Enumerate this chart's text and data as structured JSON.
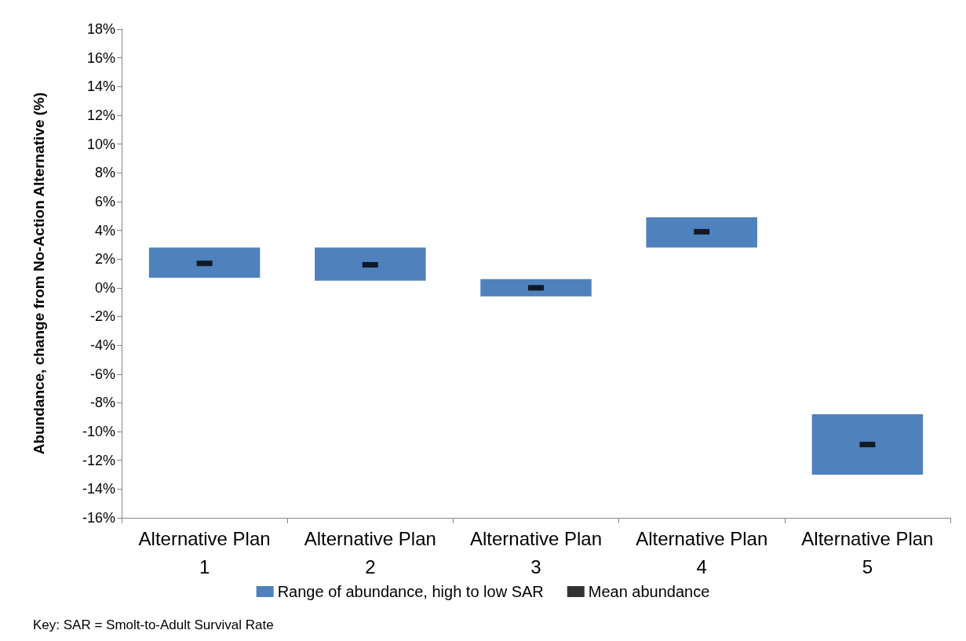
{
  "chart_data": {
    "type": "bar",
    "ylabel": "Abundance, change from No-Action Alternative (%)",
    "categories": [
      "Alternative Plan\n1",
      "Alternative Plan\n2",
      "Alternative Plan\n3",
      "Alternative Plan\n4",
      "Alternative Plan\n5"
    ],
    "series": [
      {
        "name": "Range of abundance, high to low SAR",
        "color": "#4f81bd",
        "base": [
          0.7,
          0.5,
          -0.6,
          2.8,
          -13.0
        ],
        "values": [
          2.1,
          2.3,
          1.2,
          2.1,
          4.2
        ]
      },
      {
        "name": "Mean abundance",
        "type": "scatter",
        "color": "#000000",
        "values": [
          1.7,
          1.6,
          0,
          3.9,
          -10.9
        ]
      }
    ],
    "ylim": [
      -16,
      18
    ],
    "yticks": [
      {
        "value": -16,
        "label": "-16%"
      },
      {
        "value": -14,
        "label": "-14%"
      },
      {
        "value": -12,
        "label": "-12%"
      },
      {
        "value": -10,
        "label": "-10%"
      },
      {
        "value": -8,
        "label": "-8%"
      },
      {
        "value": -6,
        "label": "-6%"
      },
      {
        "value": -4,
        "label": "-4%"
      },
      {
        "value": -2,
        "label": "-2%"
      },
      {
        "value": 0,
        "label": "0%"
      },
      {
        "value": 2,
        "label": "2%"
      },
      {
        "value": 4,
        "label": "4%"
      },
      {
        "value": 6,
        "label": "6%"
      },
      {
        "value": 8,
        "label": "8%"
      },
      {
        "value": 10,
        "label": "10%"
      },
      {
        "value": 12,
        "label": "12%"
      },
      {
        "value": 14,
        "label": "14%"
      },
      {
        "value": 16,
        "label": "16%"
      },
      {
        "value": 18,
        "label": "18%"
      }
    ],
    "grid": false,
    "legend": "bottom",
    "annotations": [
      "Key: SAR = Smolt-to-Adult Survival Rate"
    ]
  }
}
